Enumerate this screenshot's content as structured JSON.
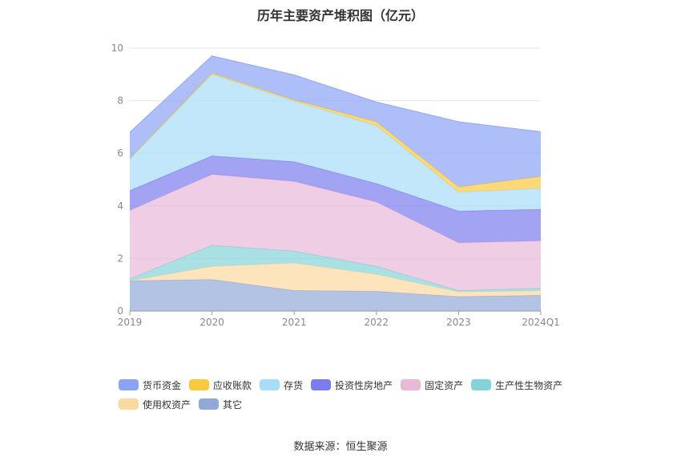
{
  "chart_data": {
    "type": "area",
    "stacked": true,
    "title": "历年主要资产堆积图（亿元）",
    "x": [
      "2019",
      "2020",
      "2021",
      "2022",
      "2023",
      "2024Q1"
    ],
    "y_ticks": [
      "0",
      "2",
      "4",
      "6",
      "8",
      "10"
    ],
    "ylim": [
      0,
      10
    ],
    "grid": true,
    "legend_position": "bottom",
    "source": "数据来源：恒生聚源",
    "series": [
      {
        "name": "其它",
        "color": "#91a9d9",
        "values": [
          1.15,
          1.2,
          0.78,
          0.75,
          0.55,
          0.6
        ]
      },
      {
        "name": "使用权资产",
        "color": "#fcd9a1",
        "values": [
          0.0,
          0.5,
          1.05,
          0.65,
          0.18,
          0.17
        ]
      },
      {
        "name": "生产性生物资产",
        "color": "#84d3d8",
        "values": [
          0.08,
          0.8,
          0.45,
          0.3,
          0.05,
          0.1
        ]
      },
      {
        "name": "固定资产",
        "color": "#e8b8d8",
        "values": [
          2.6,
          2.7,
          2.65,
          2.45,
          1.82,
          1.8
        ]
      },
      {
        "name": "投资性房地产",
        "color": "#7c7cef",
        "values": [
          0.75,
          0.7,
          0.75,
          0.7,
          1.2,
          1.2
        ]
      },
      {
        "name": "存货",
        "color": "#a8dcf8",
        "values": [
          1.2,
          3.1,
          2.3,
          2.2,
          0.72,
          0.8
        ]
      },
      {
        "name": "应收账款",
        "color": "#f9c93f",
        "values": [
          0.02,
          0.05,
          0.05,
          0.15,
          0.2,
          0.45
        ]
      },
      {
        "name": "货币资金",
        "color": "#8ba3f5",
        "values": [
          1.0,
          0.65,
          0.95,
          0.75,
          2.48,
          1.7
        ]
      }
    ],
    "legend_order": [
      "货币资金",
      "应收账款",
      "存货",
      "投资性房地产",
      "固定资产",
      "生产性生物资产",
      "使用权资产",
      "其它"
    ]
  }
}
